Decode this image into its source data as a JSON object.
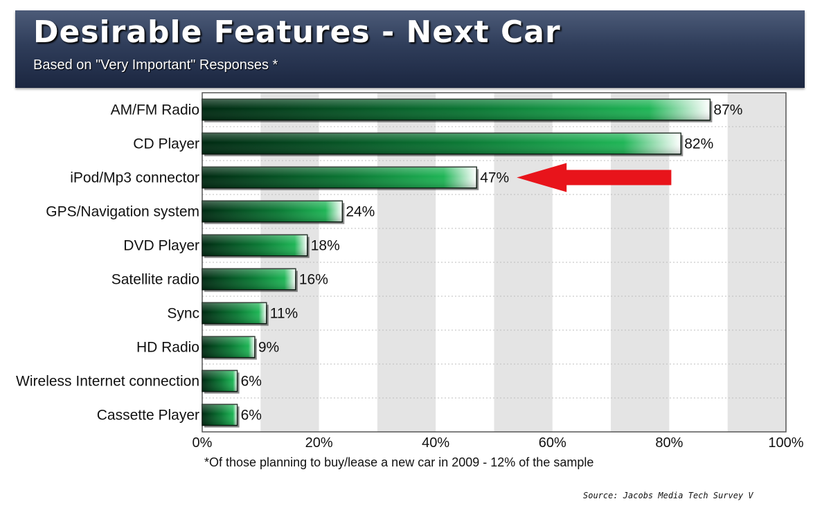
{
  "colors": {
    "header_bg": "#2f3d5a",
    "bar_dark": "#003a1a",
    "bar_mid": "#15a34a",
    "bar_light": "#ffffff",
    "band_gray": "#e4e4e4",
    "arrow": "#e8141b"
  },
  "footnote": "*Of those planning to buy/lease a new car in 2009 - 12% of the sample",
  "source": "Source:  Jacobs Media Tech Survey V",
  "chart_data": {
    "type": "bar",
    "orientation": "horizontal",
    "title": "Desirable Features - Next Car",
    "subtitle": "Based on \"Very Important\" Responses *",
    "categories": [
      "AM/FM Radio",
      "CD Player",
      "iPod/Mp3 connector",
      "GPS/Navigation system",
      "DVD Player",
      "Satellite radio",
      "Sync",
      "HD Radio",
      "Wireless Internet connection",
      "Cassette Player"
    ],
    "values": [
      87,
      82,
      47,
      24,
      18,
      16,
      11,
      9,
      6,
      6
    ],
    "data_labels": [
      "87%",
      "82%",
      "47%",
      "24%",
      "18%",
      "16%",
      "11%",
      "9%",
      "6%",
      "6%"
    ],
    "xlim": [
      0,
      100
    ],
    "x_ticks": [
      0,
      20,
      40,
      60,
      80,
      100
    ],
    "x_tick_labels": [
      "0%",
      "20%",
      "40%",
      "60%",
      "80%",
      "100%"
    ],
    "grid": true,
    "highlight": {
      "category": "iPod/Mp3 connector",
      "marker": "red arrow pointing left"
    }
  }
}
